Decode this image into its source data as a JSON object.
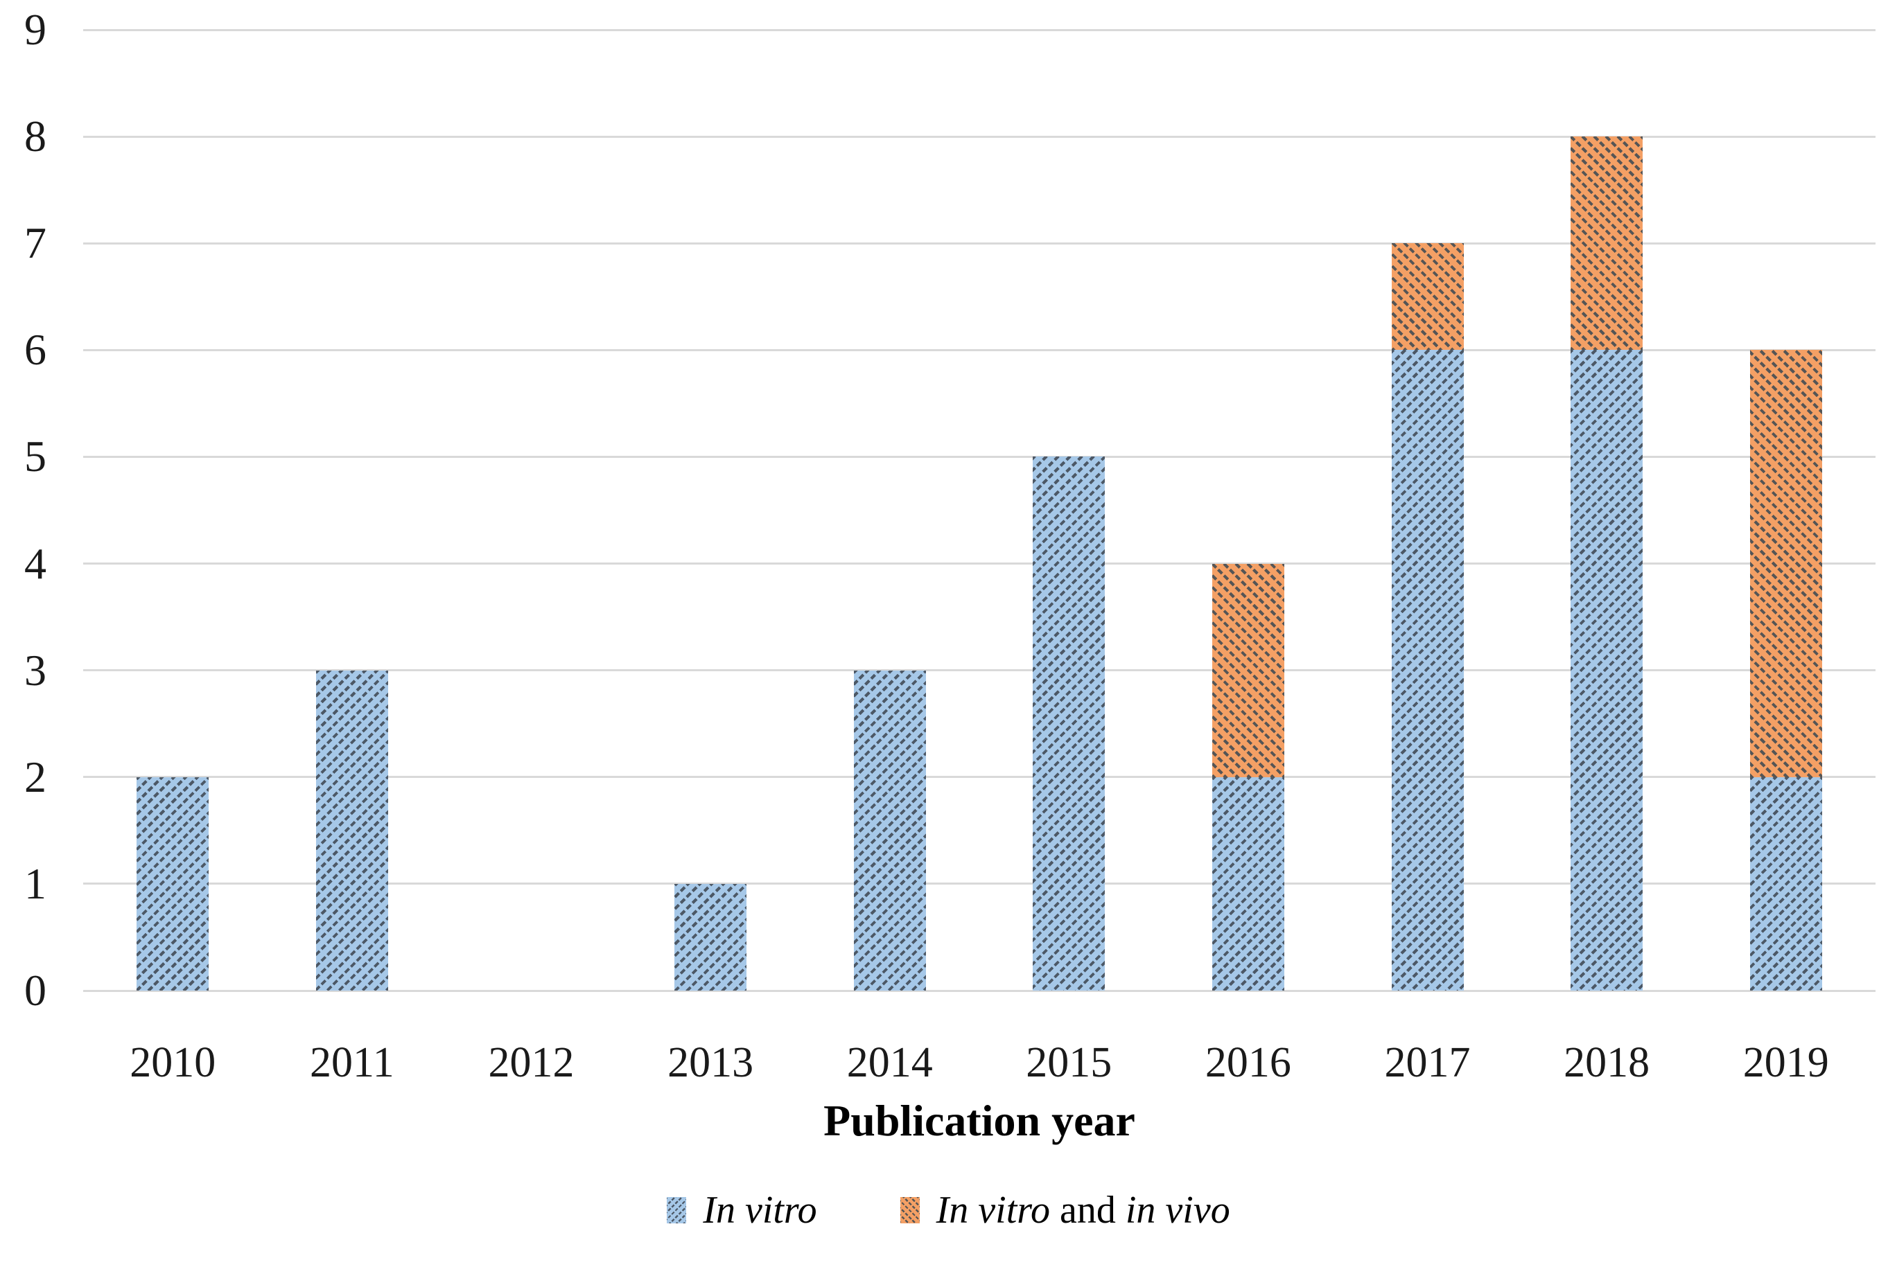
{
  "figure": {
    "background_color": "#FFFFFF",
    "gridline_color": "#D9D9D9",
    "axis_line_color": "#D9D9D9",
    "tick_label_color": "#1A1A1A"
  },
  "chart_data": {
    "type": "bar",
    "stacked": true,
    "title": "",
    "xlabel": "Publication year",
    "ylabel": "",
    "categories": [
      "2010",
      "2011",
      "2012",
      "2013",
      "2014",
      "2015",
      "2016",
      "2017",
      "2018",
      "2019"
    ],
    "series": [
      {
        "name": "In vitro",
        "values": [
          2,
          3,
          0,
          1,
          3,
          5,
          2,
          6,
          6,
          2
        ],
        "fill_color": "#A6C8E8",
        "hatch_color": "#4C5866",
        "hatch_direction": "forward-diagonal"
      },
      {
        "name": "In vitro and in vivo",
        "values": [
          0,
          0,
          0,
          0,
          0,
          0,
          2,
          1,
          2,
          4
        ],
        "fill_color": "#F4A065",
        "hatch_color": "#555555",
        "hatch_direction": "backward-diagonal"
      }
    ],
    "stack_totals": [
      2,
      3,
      0,
      1,
      3,
      5,
      4,
      7,
      8,
      6
    ],
    "ylim": [
      0,
      9
    ],
    "yticks": [
      0,
      1,
      2,
      3,
      4,
      5,
      6,
      7,
      8,
      9
    ],
    "grid": true,
    "legend_position": "bottom",
    "legend": [
      {
        "series": "In vitro",
        "marker": "blue-hatched-swatch",
        "segments": [
          {
            "text": "In vitro",
            "italic": true
          }
        ]
      },
      {
        "series": "In vitro and in vivo",
        "marker": "orange-hatched-swatch",
        "segments": [
          {
            "text": "In vitro",
            "italic": true
          },
          {
            "text": " and ",
            "italic": false
          },
          {
            "text": "in vivo",
            "italic": true
          }
        ]
      }
    ]
  }
}
